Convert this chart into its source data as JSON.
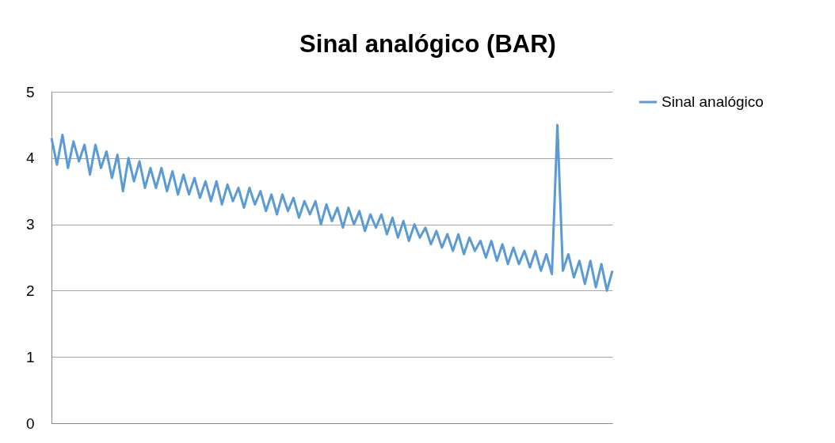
{
  "chart_data": {
    "type": "line",
    "title": "Sinal analógico (BAR)",
    "categories": [
      null,
      null,
      null,
      null,
      null,
      null,
      null,
      null,
      null,
      null,
      null,
      null,
      null,
      null,
      null,
      null,
      null,
      null,
      null,
      null,
      null,
      null,
      null,
      null,
      null,
      null,
      null,
      null,
      null,
      null,
      null,
      null,
      null,
      null,
      null,
      null,
      null,
      null,
      null,
      null,
      null,
      null,
      null,
      null,
      null,
      null,
      null,
      null,
      null,
      null,
      null,
      null,
      null,
      null,
      null,
      null,
      null,
      null,
      null,
      null,
      null,
      null,
      null,
      null,
      null,
      null,
      null,
      null,
      null,
      null,
      null,
      null,
      null,
      null,
      null,
      null,
      null,
      null,
      null,
      null,
      null,
      null,
      null,
      null,
      null,
      null,
      null,
      null,
      null,
      null,
      null,
      null,
      null,
      null,
      null,
      null,
      null,
      null,
      null,
      null,
      null,
      null,
      null
    ],
    "series": [
      {
        "name": "Sinal analógico",
        "color": "#5b9bd5",
        "values": [
          4.3,
          3.9,
          4.35,
          3.85,
          4.25,
          3.95,
          4.2,
          3.75,
          4.2,
          3.85,
          4.1,
          3.7,
          4.05,
          3.5,
          4.0,
          3.65,
          3.95,
          3.55,
          3.85,
          3.55,
          3.85,
          3.5,
          3.8,
          3.45,
          3.75,
          3.45,
          3.7,
          3.4,
          3.65,
          3.35,
          3.65,
          3.3,
          3.6,
          3.35,
          3.55,
          3.25,
          3.55,
          3.3,
          3.5,
          3.2,
          3.45,
          3.15,
          3.45,
          3.2,
          3.4,
          3.1,
          3.35,
          3.15,
          3.35,
          3.0,
          3.3,
          3.05,
          3.25,
          2.95,
          3.25,
          3.0,
          3.2,
          2.9,
          3.15,
          2.95,
          3.15,
          2.85,
          3.1,
          2.8,
          3.05,
          2.75,
          3.0,
          2.8,
          2.95,
          2.7,
          2.9,
          2.65,
          2.85,
          2.6,
          2.85,
          2.55,
          2.8,
          2.6,
          2.75,
          2.5,
          2.75,
          2.45,
          2.7,
          2.4,
          2.65,
          2.4,
          2.6,
          2.35,
          2.6,
          2.3,
          2.55,
          2.25,
          4.5,
          2.3,
          2.55,
          2.2,
          2.45,
          2.1,
          2.45,
          2.05,
          2.4,
          2.0,
          2.3
        ]
      }
    ],
    "ylim": [
      0,
      5
    ],
    "yticks": [
      0,
      1,
      2,
      3,
      4,
      5
    ],
    "grid": "y",
    "legend": "right",
    "tick_labels": "y",
    "marker": "none",
    "line_style": "solid"
  }
}
